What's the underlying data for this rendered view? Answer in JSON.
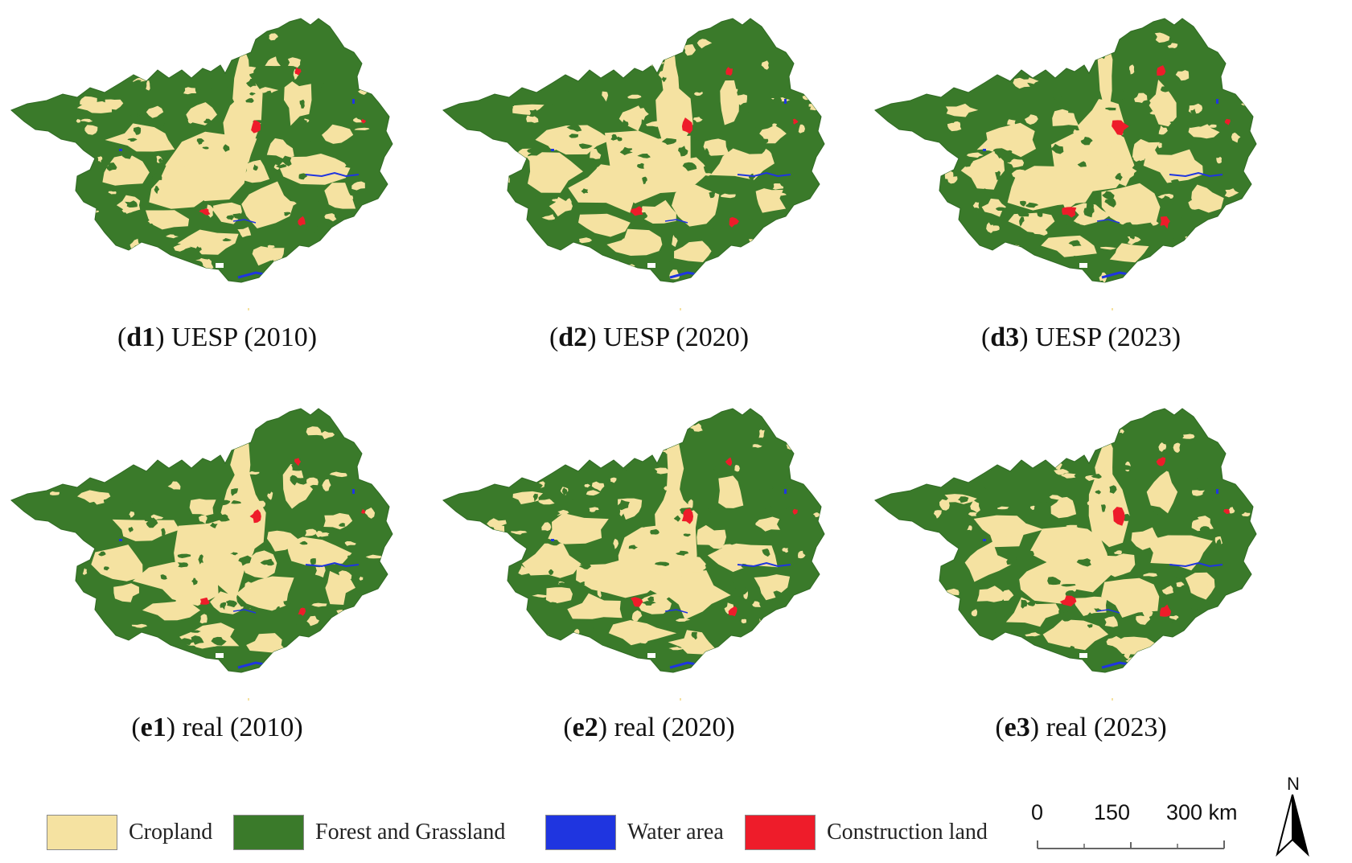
{
  "panels": [
    {
      "id": "d1",
      "caption_id": "d1",
      "caption_text": " UESP (2010)"
    },
    {
      "id": "d2",
      "caption_id": "d2",
      "caption_text": " UESP (2020)"
    },
    {
      "id": "d3",
      "caption_id": "d3",
      "caption_text": " UESP (2023)"
    },
    {
      "id": "e1",
      "caption_id": "e1",
      "caption_text": " real (2010)"
    },
    {
      "id": "e2",
      "caption_id": "e2",
      "caption_text": " real (2020)"
    },
    {
      "id": "e3",
      "caption_id": "e3",
      "caption_text": " real (2023)"
    }
  ],
  "legend": {
    "items": [
      {
        "label": "Cropland",
        "color": "#f5e2a1"
      },
      {
        "label": "Forest and Grassland",
        "color": "#3a7a2a"
      },
      {
        "label": "Water area",
        "color": "#1f35e0"
      },
      {
        "label": "Construction land",
        "color": "#ee1c2a"
      }
    ]
  },
  "scale": {
    "ticks": [
      "0",
      "150",
      "300 km"
    ]
  },
  "north_label": "N",
  "colors": {
    "cropland": "#f5e2a1",
    "forest": "#3a7a2a",
    "water": "#1f35e0",
    "construction": "#ee1c2a"
  }
}
